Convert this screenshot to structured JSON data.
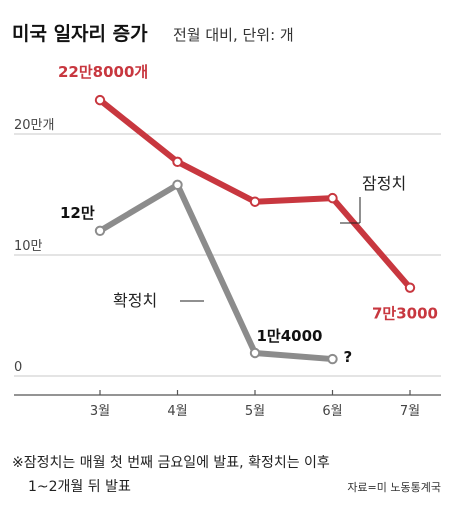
{
  "header": {
    "title": "미국 일자리 증가",
    "subtitle": "전월 대비, 단위: 개"
  },
  "chart_data": {
    "type": "line",
    "categories": [
      "3월",
      "4월",
      "5월",
      "6월",
      "7월"
    ],
    "yticks": [
      "20만개",
      "10만",
      "0"
    ],
    "ytick_values": [
      200000,
      100000,
      0
    ],
    "ylim": [
      0,
      250000
    ],
    "grid": true,
    "series": [
      {
        "name": "잠정치",
        "color": "#c8373f",
        "values": [
          228000,
          177000,
          144000,
          147000,
          73000
        ]
      },
      {
        "name": "확정치",
        "color": "#8c8c8c",
        "values": [
          120000,
          158000,
          19000,
          14000,
          null
        ]
      }
    ],
    "data_labels": [
      {
        "series": 0,
        "index": 0,
        "text": "22만8000개"
      },
      {
        "series": 0,
        "index": 4,
        "text": "7만3000"
      },
      {
        "series": 1,
        "index": 0,
        "text": "12만"
      },
      {
        "series": 1,
        "index": 3,
        "text": "1만4000"
      }
    ],
    "annotations": [
      {
        "series": 1,
        "index": 3,
        "text": "?"
      }
    ]
  },
  "footer": {
    "note_line1": "※잠정치는 매월 첫 번째 금요일에 발표, 확정치는 이후",
    "note_line2": "1~2개월 뒤 발표",
    "source": "자료=미 노동통계국"
  }
}
